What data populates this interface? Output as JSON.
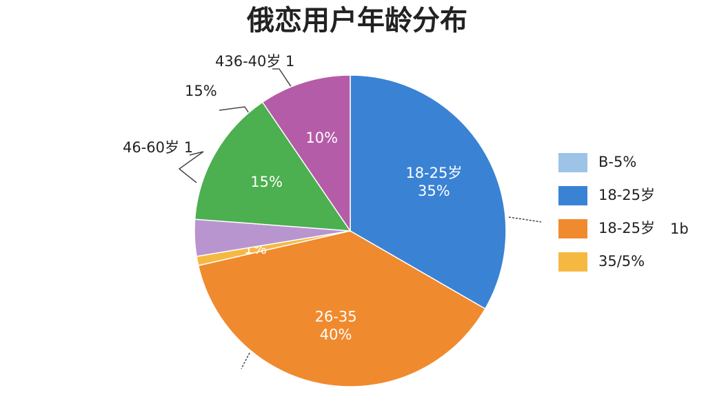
{
  "chart_data": {
    "type": "pie",
    "title": "俄恋用户年龄分布",
    "categories": [
      "18-25岁",
      "26-35",
      null,
      null,
      null,
      null
    ],
    "values": [
      35,
      40,
      1,
      4,
      15,
      10
    ],
    "value_labels": [
      "35%",
      "40%",
      "1%",
      null,
      "15%",
      "10%"
    ],
    "colors": [
      "#3a82d4",
      "#f08a2e",
      "#f5b942",
      "#b995d0",
      "#4caf50",
      "#b55ca8"
    ],
    "annotations": [
      "436-40岁 1",
      "15%",
      "46-60岁 1",
      "1b"
    ],
    "legend": [
      {
        "label": "B-5%",
        "color": "#9dc3e6"
      },
      {
        "label": "18-25岁",
        "color": "#3a82d4"
      },
      {
        "label": "18-25岁",
        "color": "#f08a2e"
      },
      {
        "label": "35/5%",
        "color": "#f5b942"
      }
    ]
  }
}
